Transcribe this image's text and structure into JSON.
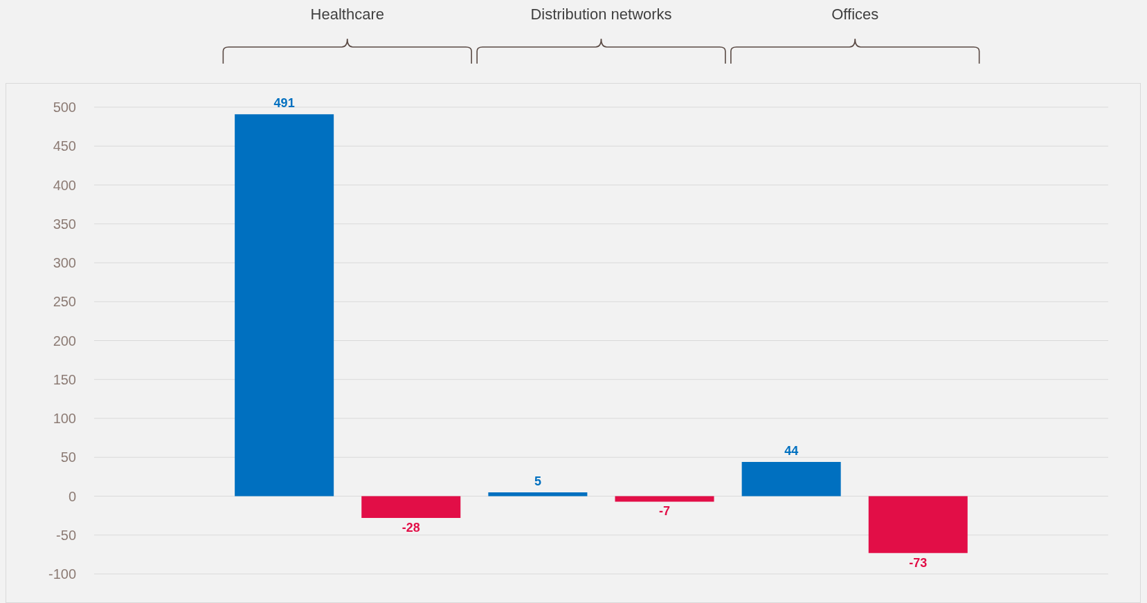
{
  "chart_data": {
    "type": "bar",
    "categories": [
      null,
      null,
      null,
      null,
      null,
      null,
      null,
      null
    ],
    "values": [
      null,
      491,
      -28,
      5,
      -7,
      44,
      -73,
      null
    ],
    "colors": [
      "#0070c0",
      "#0070c0",
      "#e20e47",
      "#0070c0",
      "#e20e47",
      "#0070c0",
      "#e20e47",
      "#e20e47"
    ],
    "ylim": [
      -100,
      500
    ],
    "yticks": [
      -100,
      -50,
      0,
      50,
      100,
      150,
      200,
      250,
      300,
      350,
      400,
      450,
      500
    ],
    "grid": "y",
    "data_labels": true,
    "legend": false,
    "annotations": [
      "Healthcare",
      "Distribution networks",
      "Offices"
    ]
  }
}
